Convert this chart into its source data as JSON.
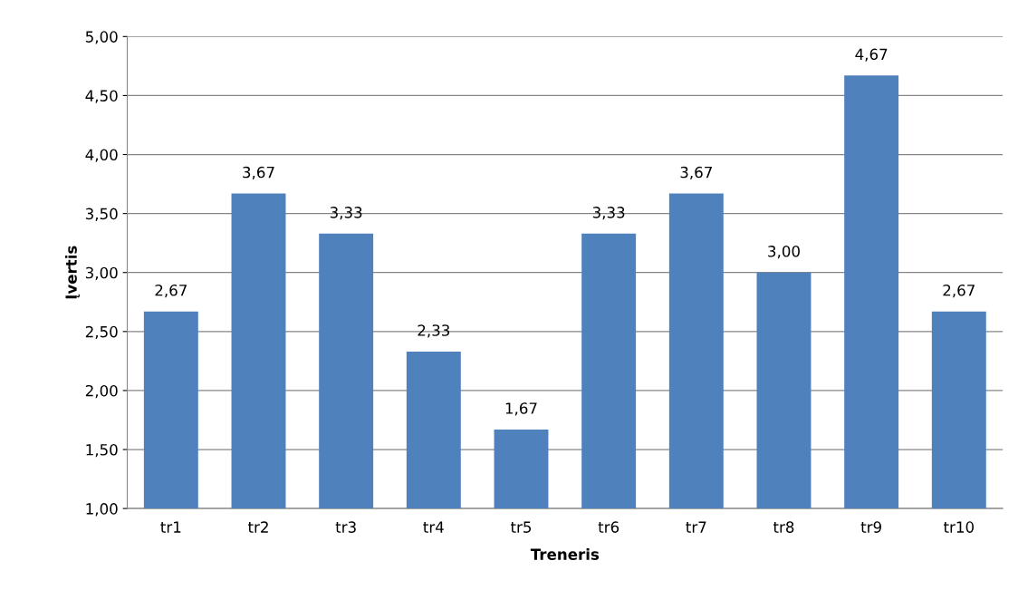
{
  "chart_data": {
    "type": "bar",
    "xlabel": "Treneris",
    "ylabel": "Įvertis",
    "categories": [
      "tr1",
      "tr2",
      "tr3",
      "tr4",
      "tr5",
      "tr6",
      "tr7",
      "tr8",
      "tr9",
      "tr10"
    ],
    "values": [
      2.67,
      3.67,
      3.33,
      2.33,
      1.67,
      3.33,
      3.67,
      3.0,
      4.67,
      2.67
    ],
    "value_labels": [
      "2,67",
      "3,67",
      "3,33",
      "2,33",
      "1,67",
      "3,33",
      "3,67",
      "3,00",
      "4,67",
      "2,67"
    ],
    "color": "#4f81bd",
    "ylim": [
      1,
      5
    ],
    "yticks": [
      {
        "value": 1,
        "label": "1,00"
      },
      {
        "value": 1.5,
        "label": "1,50"
      },
      {
        "value": 2,
        "label": "2,00"
      },
      {
        "value": 2.5,
        "label": "2,50"
      },
      {
        "value": 3,
        "label": "3,00"
      },
      {
        "value": 3.5,
        "label": "3,50"
      },
      {
        "value": 4,
        "label": "4,00"
      },
      {
        "value": 4.5,
        "label": "4,50"
      },
      {
        "value": 5,
        "label": "5,00"
      }
    ],
    "grid": "y",
    "legend": false
  }
}
